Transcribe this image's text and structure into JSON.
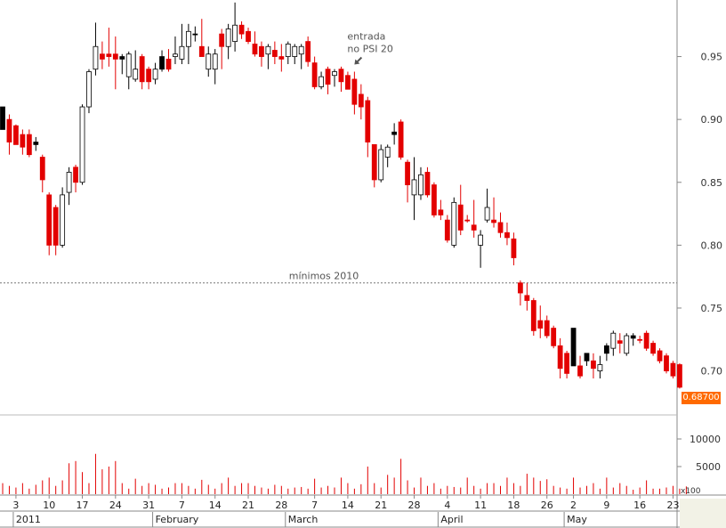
{
  "chart_data": {
    "type": "candlestick",
    "y_axis_price": {
      "range": [
        0.665,
        0.995
      ],
      "ticks": [
        "0.95",
        "0.90",
        "0.85",
        "0.80",
        "0.75",
        "0.70"
      ]
    },
    "y_axis_volume": {
      "range": [
        0,
        12000
      ],
      "ticks": [
        "10000",
        "5000"
      ],
      "scale_label": "x100"
    },
    "last_price_label": "0.68700",
    "reference_line": {
      "value": 0.77,
      "label": "mínimos 2010"
    },
    "annotation": {
      "lines": [
        "entrada",
        "no PSI 20"
      ],
      "candle_index": 53
    },
    "x_day_ticks": [
      {
        "label": "3",
        "i": 2
      },
      {
        "label": "10",
        "i": 7
      },
      {
        "label": "17",
        "i": 12
      },
      {
        "label": "24",
        "i": 17
      },
      {
        "label": "31",
        "i": 22
      },
      {
        "label": "7",
        "i": 27
      },
      {
        "label": "14",
        "i": 32
      },
      {
        "label": "21",
        "i": 37
      },
      {
        "label": "28",
        "i": 42
      },
      {
        "label": "7",
        "i": 47
      },
      {
        "label": "14",
        "i": 52
      },
      {
        "label": "21",
        "i": 57
      },
      {
        "label": "28",
        "i": 62
      },
      {
        "label": "4",
        "i": 67
      },
      {
        "label": "11",
        "i": 72
      },
      {
        "label": "18",
        "i": 77
      },
      {
        "label": "26",
        "i": 82
      },
      {
        "label": "2",
        "i": 86
      },
      {
        "label": "9",
        "i": 91
      },
      {
        "label": "16",
        "i": 96
      },
      {
        "label": "23",
        "i": 101
      }
    ],
    "x_month_labels": [
      {
        "label": "2011",
        "i": 2
      },
      {
        "label": "February",
        "i": 23
      },
      {
        "label": "March",
        "i": 43
      },
      {
        "label": "April",
        "i": 66
      },
      {
        "label": "May",
        "i": 85
      }
    ],
    "candles": [
      {
        "o": 0.91,
        "h": 0.91,
        "l": 0.892,
        "c": 0.892,
        "col": "black"
      },
      {
        "o": 0.9,
        "h": 0.904,
        "l": 0.872,
        "c": 0.882,
        "col": "red"
      },
      {
        "o": 0.895,
        "h": 0.896,
        "l": 0.88,
        "c": 0.88,
        "col": "red"
      },
      {
        "o": 0.888,
        "h": 0.892,
        "l": 0.872,
        "c": 0.878,
        "col": "red"
      },
      {
        "o": 0.888,
        "h": 0.892,
        "l": 0.87,
        "c": 0.872,
        "col": "red"
      },
      {
        "o": 0.882,
        "h": 0.886,
        "l": 0.875,
        "c": 0.88,
        "col": "black"
      },
      {
        "o": 0.87,
        "h": 0.872,
        "l": 0.842,
        "c": 0.852,
        "col": "red"
      },
      {
        "o": 0.84,
        "h": 0.842,
        "l": 0.792,
        "c": 0.8,
        "col": "red"
      },
      {
        "o": 0.83,
        "h": 0.832,
        "l": 0.792,
        "c": 0.8,
        "col": "red"
      },
      {
        "o": 0.8,
        "h": 0.846,
        "l": 0.798,
        "c": 0.84,
        "col": "white"
      },
      {
        "o": 0.842,
        "h": 0.862,
        "l": 0.832,
        "c": 0.858,
        "col": "white"
      },
      {
        "o": 0.862,
        "h": 0.864,
        "l": 0.842,
        "c": 0.85,
        "col": "red"
      },
      {
        "o": 0.85,
        "h": 0.912,
        "l": 0.848,
        "c": 0.91,
        "col": "white"
      },
      {
        "o": 0.91,
        "h": 0.94,
        "l": 0.905,
        "c": 0.938,
        "col": "white"
      },
      {
        "o": 0.94,
        "h": 0.977,
        "l": 0.935,
        "c": 0.958,
        "col": "white"
      },
      {
        "o": 0.952,
        "h": 0.962,
        "l": 0.94,
        "c": 0.948,
        "col": "red"
      },
      {
        "o": 0.952,
        "h": 0.973,
        "l": 0.942,
        "c": 0.95,
        "col": "red"
      },
      {
        "o": 0.952,
        "h": 0.966,
        "l": 0.924,
        "c": 0.948,
        "col": "red"
      },
      {
        "o": 0.948,
        "h": 0.952,
        "l": 0.936,
        "c": 0.95,
        "col": "black"
      },
      {
        "o": 0.952,
        "h": 0.954,
        "l": 0.924,
        "c": 0.934,
        "col": "white"
      },
      {
        "o": 0.932,
        "h": 0.955,
        "l": 0.93,
        "c": 0.94,
        "col": "white"
      },
      {
        "o": 0.95,
        "h": 0.952,
        "l": 0.924,
        "c": 0.93,
        "col": "red"
      },
      {
        "o": 0.94,
        "h": 0.942,
        "l": 0.924,
        "c": 0.93,
        "col": "red"
      },
      {
        "o": 0.932,
        "h": 0.945,
        "l": 0.928,
        "c": 0.94,
        "col": "white"
      },
      {
        "o": 0.94,
        "h": 0.955,
        "l": 0.938,
        "c": 0.95,
        "col": "black"
      },
      {
        "o": 0.948,
        "h": 0.956,
        "l": 0.938,
        "c": 0.94,
        "col": "red"
      },
      {
        "o": 0.952,
        "h": 0.966,
        "l": 0.944,
        "c": 0.95,
        "col": "white"
      },
      {
        "o": 0.948,
        "h": 0.976,
        "l": 0.944,
        "c": 0.958,
        "col": "white"
      },
      {
        "o": 0.958,
        "h": 0.976,
        "l": 0.944,
        "c": 0.97,
        "col": "white"
      },
      {
        "o": 0.968,
        "h": 0.974,
        "l": 0.962,
        "c": 0.968,
        "col": "black"
      },
      {
        "o": 0.958,
        "h": 0.98,
        "l": 0.95,
        "c": 0.95,
        "col": "red"
      },
      {
        "o": 0.952,
        "h": 0.958,
        "l": 0.934,
        "c": 0.94,
        "col": "white"
      },
      {
        "o": 0.952,
        "h": 0.956,
        "l": 0.928,
        "c": 0.94,
        "col": "white"
      },
      {
        "o": 0.958,
        "h": 0.972,
        "l": 0.94,
        "c": 0.968,
        "col": "red"
      },
      {
        "o": 0.958,
        "h": 0.976,
        "l": 0.948,
        "c": 0.972,
        "col": "white"
      },
      {
        "o": 0.962,
        "h": 0.993,
        "l": 0.954,
        "c": 0.975,
        "col": "white"
      },
      {
        "o": 0.975,
        "h": 0.978,
        "l": 0.964,
        "c": 0.968,
        "col": "red"
      },
      {
        "o": 0.97,
        "h": 0.973,
        "l": 0.96,
        "c": 0.962,
        "col": "red"
      },
      {
        "o": 0.96,
        "h": 0.97,
        "l": 0.95,
        "c": 0.952,
        "col": "red"
      },
      {
        "o": 0.958,
        "h": 0.962,
        "l": 0.942,
        "c": 0.95,
        "col": "red"
      },
      {
        "o": 0.952,
        "h": 0.96,
        "l": 0.94,
        "c": 0.958,
        "col": "white"
      },
      {
        "o": 0.955,
        "h": 0.962,
        "l": 0.944,
        "c": 0.95,
        "col": "red"
      },
      {
        "o": 0.948,
        "h": 0.96,
        "l": 0.938,
        "c": 0.95,
        "col": "red"
      },
      {
        "o": 0.95,
        "h": 0.962,
        "l": 0.944,
        "c": 0.96,
        "col": "white"
      },
      {
        "o": 0.958,
        "h": 0.96,
        "l": 0.944,
        "c": 0.95,
        "col": "white"
      },
      {
        "o": 0.952,
        "h": 0.96,
        "l": 0.94,
        "c": 0.958,
        "col": "white"
      },
      {
        "o": 0.962,
        "h": 0.966,
        "l": 0.942,
        "c": 0.946,
        "col": "red"
      },
      {
        "o": 0.945,
        "h": 0.95,
        "l": 0.924,
        "c": 0.926,
        "col": "red"
      },
      {
        "o": 0.934,
        "h": 0.938,
        "l": 0.924,
        "c": 0.926,
        "col": "white"
      },
      {
        "o": 0.94,
        "h": 0.942,
        "l": 0.92,
        "c": 0.928,
        "col": "red"
      },
      {
        "o": 0.935,
        "h": 0.94,
        "l": 0.926,
        "c": 0.938,
        "col": "white"
      },
      {
        "o": 0.94,
        "h": 0.942,
        "l": 0.922,
        "c": 0.93,
        "col": "red"
      },
      {
        "o": 0.935,
        "h": 0.938,
        "l": 0.924,
        "c": 0.924,
        "col": "red"
      },
      {
        "o": 0.932,
        "h": 0.938,
        "l": 0.904,
        "c": 0.912,
        "col": "red"
      },
      {
        "o": 0.92,
        "h": 0.928,
        "l": 0.9,
        "c": 0.91,
        "col": "red"
      },
      {
        "o": 0.915,
        "h": 0.918,
        "l": 0.87,
        "c": 0.882,
        "col": "red"
      },
      {
        "o": 0.88,
        "h": 0.88,
        "l": 0.846,
        "c": 0.852,
        "col": "red"
      },
      {
        "o": 0.852,
        "h": 0.88,
        "l": 0.85,
        "c": 0.876,
        "col": "white"
      },
      {
        "o": 0.87,
        "h": 0.88,
        "l": 0.862,
        "c": 0.878,
        "col": "white"
      },
      {
        "o": 0.888,
        "h": 0.897,
        "l": 0.88,
        "c": 0.89,
        "col": "black"
      },
      {
        "o": 0.898,
        "h": 0.9,
        "l": 0.868,
        "c": 0.87,
        "col": "red"
      },
      {
        "o": 0.866,
        "h": 0.868,
        "l": 0.834,
        "c": 0.848,
        "col": "red"
      },
      {
        "o": 0.852,
        "h": 0.87,
        "l": 0.82,
        "c": 0.84,
        "col": "white"
      },
      {
        "o": 0.84,
        "h": 0.862,
        "l": 0.836,
        "c": 0.856,
        "col": "white"
      },
      {
        "o": 0.858,
        "h": 0.862,
        "l": 0.838,
        "c": 0.84,
        "col": "red"
      },
      {
        "o": 0.848,
        "h": 0.85,
        "l": 0.822,
        "c": 0.824,
        "col": "red"
      },
      {
        "o": 0.828,
        "h": 0.836,
        "l": 0.82,
        "c": 0.824,
        "col": "red"
      },
      {
        "o": 0.82,
        "h": 0.824,
        "l": 0.802,
        "c": 0.804,
        "col": "red"
      },
      {
        "o": 0.8,
        "h": 0.838,
        "l": 0.798,
        "c": 0.834,
        "col": "white"
      },
      {
        "o": 0.832,
        "h": 0.848,
        "l": 0.808,
        "c": 0.812,
        "col": "red"
      },
      {
        "o": 0.82,
        "h": 0.824,
        "l": 0.818,
        "c": 0.82,
        "col": "red"
      },
      {
        "o": 0.816,
        "h": 0.836,
        "l": 0.806,
        "c": 0.812,
        "col": "red"
      },
      {
        "o": 0.8,
        "h": 0.812,
        "l": 0.782,
        "c": 0.808,
        "col": "white"
      },
      {
        "o": 0.82,
        "h": 0.845,
        "l": 0.818,
        "c": 0.83,
        "col": "white"
      },
      {
        "o": 0.82,
        "h": 0.838,
        "l": 0.814,
        "c": 0.818,
        "col": "red"
      },
      {
        "o": 0.818,
        "h": 0.826,
        "l": 0.806,
        "c": 0.81,
        "col": "red"
      },
      {
        "o": 0.81,
        "h": 0.818,
        "l": 0.8,
        "c": 0.806,
        "col": "red"
      },
      {
        "o": 0.805,
        "h": 0.81,
        "l": 0.784,
        "c": 0.79,
        "col": "red"
      },
      {
        "o": 0.77,
        "h": 0.772,
        "l": 0.752,
        "c": 0.762,
        "col": "red"
      },
      {
        "o": 0.76,
        "h": 0.77,
        "l": 0.748,
        "c": 0.756,
        "col": "red"
      },
      {
        "o": 0.756,
        "h": 0.758,
        "l": 0.728,
        "c": 0.732,
        "col": "red"
      },
      {
        "o": 0.74,
        "h": 0.752,
        "l": 0.726,
        "c": 0.734,
        "col": "red"
      },
      {
        "o": 0.74,
        "h": 0.744,
        "l": 0.726,
        "c": 0.728,
        "col": "red"
      },
      {
        "o": 0.734,
        "h": 0.736,
        "l": 0.718,
        "c": 0.72,
        "col": "red"
      },
      {
        "o": 0.72,
        "h": 0.726,
        "l": 0.694,
        "c": 0.702,
        "col": "red"
      },
      {
        "o": 0.714,
        "h": 0.716,
        "l": 0.694,
        "c": 0.698,
        "col": "red"
      },
      {
        "o": 0.734,
        "h": 0.734,
        "l": 0.704,
        "c": 0.704,
        "col": "black"
      },
      {
        "o": 0.704,
        "h": 0.712,
        "l": 0.694,
        "c": 0.696,
        "col": "red"
      },
      {
        "o": 0.708,
        "h": 0.714,
        "l": 0.704,
        "c": 0.714,
        "col": "black"
      },
      {
        "o": 0.708,
        "h": 0.714,
        "l": 0.694,
        "c": 0.702,
        "col": "red"
      },
      {
        "o": 0.7,
        "h": 0.712,
        "l": 0.694,
        "c": 0.705,
        "col": "white"
      },
      {
        "o": 0.714,
        "h": 0.722,
        "l": 0.708,
        "c": 0.72,
        "col": "black"
      },
      {
        "o": 0.718,
        "h": 0.732,
        "l": 0.712,
        "c": 0.73,
        "col": "white"
      },
      {
        "o": 0.724,
        "h": 0.73,
        "l": 0.714,
        "c": 0.722,
        "col": "red"
      },
      {
        "o": 0.714,
        "h": 0.73,
        "l": 0.712,
        "c": 0.728,
        "col": "white"
      },
      {
        "o": 0.726,
        "h": 0.73,
        "l": 0.72,
        "c": 0.728,
        "col": "black"
      },
      {
        "o": 0.725,
        "h": 0.728,
        "l": 0.722,
        "c": 0.725,
        "col": "red"
      },
      {
        "o": 0.73,
        "h": 0.732,
        "l": 0.716,
        "c": 0.718,
        "col": "red"
      },
      {
        "o": 0.722,
        "h": 0.724,
        "l": 0.712,
        "c": 0.714,
        "col": "red"
      },
      {
        "o": 0.716,
        "h": 0.718,
        "l": 0.706,
        "c": 0.708,
        "col": "red"
      },
      {
        "o": 0.712,
        "h": 0.714,
        "l": 0.698,
        "c": 0.7,
        "col": "red"
      },
      {
        "o": 0.706,
        "h": 0.708,
        "l": 0.694,
        "c": 0.696,
        "col": "red"
      },
      {
        "o": 0.705,
        "h": 0.706,
        "l": 0.686,
        "c": 0.687,
        "col": "red"
      }
    ],
    "volumes": [
      2000,
      1500,
      1200,
      2000,
      1000,
      1700,
      2500,
      3000,
      1500,
      2500,
      5600,
      6000,
      4000,
      2000,
      7300,
      4500,
      5000,
      6000,
      2000,
      1000,
      2800,
      1500,
      2000,
      1700,
      1000,
      1200,
      2000,
      2000,
      1500,
      1000,
      2600,
      1700,
      1000,
      2000,
      3000,
      1500,
      2000,
      2000,
      1500,
      1200,
      1000,
      1700,
      1500,
      1000,
      1200,
      1300,
      1000,
      2800,
      1200,
      1500,
      1200,
      3000,
      2000,
      1000,
      1800,
      5000,
      2000,
      1200,
      3500,
      3000,
      6400,
      2500,
      1200,
      3000,
      1500,
      2000,
      1000,
      1500,
      1300,
      1200,
      3000,
      1500,
      1000,
      2000,
      2000,
      1500,
      3000,
      2000,
      1500,
      3700,
      3000,
      2400,
      2700,
      1500,
      1200,
      1000,
      3000,
      1200,
      1500,
      2000,
      1000,
      3000,
      1200,
      2000,
      1500,
      800,
      1200,
      2500,
      1000,
      1000,
      1200,
      1500,
      1000,
      1400
    ]
  }
}
